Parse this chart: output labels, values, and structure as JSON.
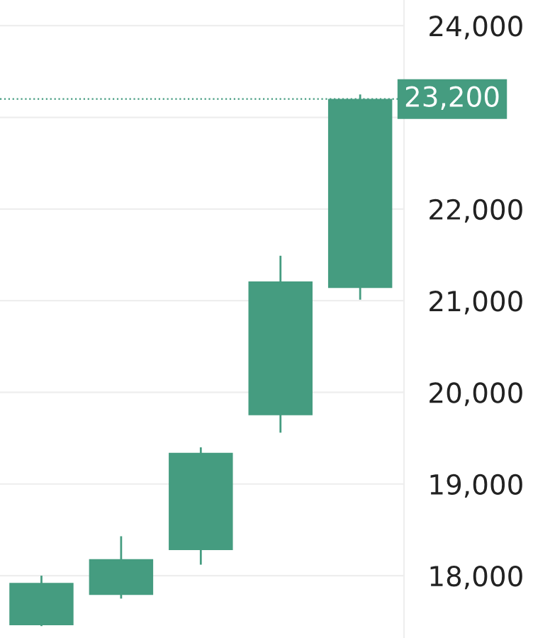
{
  "chart_data": {
    "type": "candlestick",
    "categories": [
      null,
      null,
      null,
      null,
      null
    ],
    "ohlc": [
      [
        17470,
        18000,
        17450,
        17910
      ],
      [
        17800,
        18430,
        17750,
        18170
      ],
      [
        18290,
        19400,
        18120,
        19330
      ],
      [
        19760,
        21490,
        19560,
        21200
      ],
      [
        21150,
        23250,
        21010,
        23190
      ]
    ],
    "color": "#459c80",
    "ylim": [
      17320,
      24280
    ],
    "yticks": [
      {
        "value": 18000,
        "label": "18,000"
      },
      {
        "value": 19000,
        "label": "19,000"
      },
      {
        "value": 20000,
        "label": "20,000"
      },
      {
        "value": 21000,
        "label": "21,000"
      },
      {
        "value": 22000,
        "label": "22,000"
      },
      {
        "value": 23000,
        "label": null
      },
      {
        "value": 24000,
        "label": "24,000"
      }
    ],
    "grid": "y",
    "ref_lines": [
      {
        "axis": "y",
        "value": 23200,
        "label": "23,200",
        "color": "#459c80",
        "line_style": "dotted"
      }
    ]
  }
}
